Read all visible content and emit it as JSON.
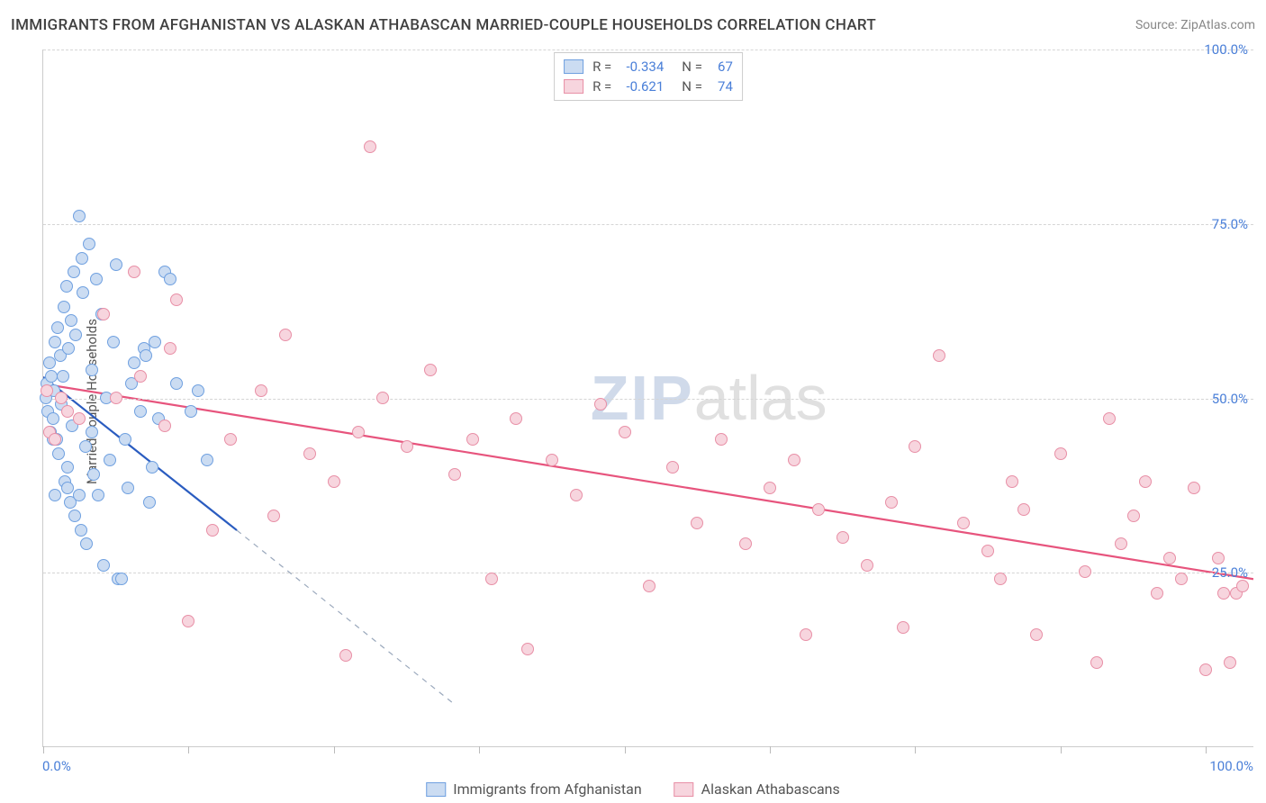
{
  "title": "IMMIGRANTS FROM AFGHANISTAN VS ALASKAN ATHABASCAN MARRIED-COUPLE HOUSEHOLDS CORRELATION CHART",
  "source": "Source: ZipAtlas.com",
  "ylabel": "Married-couple Households",
  "watermark": {
    "part1": "ZIP",
    "part2": "atlas"
  },
  "chart": {
    "type": "scatter",
    "xlim": [
      0,
      100
    ],
    "ylim": [
      0,
      100
    ],
    "xticks": [
      0,
      12,
      24,
      36,
      48,
      60,
      72,
      84,
      96
    ],
    "yticks": [
      25,
      50,
      75,
      100
    ],
    "ytick_labels": [
      "25.0%",
      "50.0%",
      "75.0%",
      "100.0%"
    ],
    "x_min_label": "0.0%",
    "x_max_label": "100.0%",
    "grid_color": "#d5d5d5",
    "axis_color": "#cccccc",
    "tick_label_color": "#4a7fd8",
    "background_color": "#ffffff",
    "marker_radius": 7,
    "marker_border_width": 1.5,
    "trend_line_width": 2.2
  },
  "series": [
    {
      "id": "afghanistan",
      "label": "Immigrants from Afghanistan",
      "fill": "#cbdcf2",
      "stroke": "#6fa0e0",
      "trend_color": "#2a5cc0",
      "R": "-0.334",
      "N": "67",
      "trend": {
        "x1": 0,
        "y1": 53,
        "x2_solid": 16,
        "y2_solid": 31,
        "x2_dash": 34,
        "y2_dash": 6
      },
      "points": [
        [
          0.2,
          50
        ],
        [
          0.3,
          52
        ],
        [
          0.4,
          48
        ],
        [
          0.5,
          55
        ],
        [
          0.6,
          45
        ],
        [
          0.7,
          53
        ],
        [
          0.8,
          47
        ],
        [
          0.9,
          51
        ],
        [
          1.0,
          58
        ],
        [
          1.1,
          44
        ],
        [
          1.2,
          60
        ],
        [
          1.3,
          42
        ],
        [
          1.4,
          56
        ],
        [
          1.5,
          49
        ],
        [
          1.6,
          53
        ],
        [
          1.7,
          63
        ],
        [
          1.8,
          38
        ],
        [
          1.9,
          66
        ],
        [
          2.0,
          40
        ],
        [
          2.1,
          57
        ],
        [
          2.2,
          35
        ],
        [
          2.3,
          61
        ],
        [
          2.4,
          46
        ],
        [
          2.5,
          68
        ],
        [
          2.6,
          33
        ],
        [
          2.7,
          59
        ],
        [
          3.0,
          76
        ],
        [
          3.1,
          31
        ],
        [
          3.2,
          70
        ],
        [
          3.3,
          65
        ],
        [
          3.5,
          43
        ],
        [
          3.6,
          29
        ],
        [
          3.8,
          72
        ],
        [
          4.0,
          54
        ],
        [
          4.2,
          39
        ],
        [
          4.4,
          67
        ],
        [
          4.5,
          36
        ],
        [
          4.8,
          62
        ],
        [
          5.0,
          26
        ],
        [
          5.2,
          50
        ],
        [
          5.5,
          41
        ],
        [
          5.8,
          58
        ],
        [
          6.0,
          69
        ],
        [
          6.2,
          24
        ],
        [
          6.5,
          24
        ],
        [
          6.8,
          44
        ],
        [
          7.0,
          37
        ],
        [
          7.3,
          52
        ],
        [
          7.5,
          55
        ],
        [
          8.0,
          48
        ],
        [
          8.3,
          57
        ],
        [
          8.5,
          56
        ],
        [
          8.8,
          35
        ],
        [
          9.0,
          40
        ],
        [
          9.2,
          58
        ],
        [
          9.5,
          47
        ],
        [
          10.0,
          68
        ],
        [
          10.5,
          67
        ],
        [
          11.0,
          52
        ],
        [
          12.2,
          48
        ],
        [
          12.8,
          51
        ],
        [
          13.5,
          41
        ],
        [
          1.0,
          36
        ],
        [
          2.0,
          37
        ],
        [
          3.0,
          36
        ],
        [
          4.0,
          45
        ],
        [
          0.8,
          44
        ]
      ]
    },
    {
      "id": "athabascan",
      "label": "Alaskan Athabascans",
      "fill": "#f7d5de",
      "stroke": "#e88fa6",
      "trend_color": "#e7547d",
      "R": "-0.621",
      "N": "74",
      "trend": {
        "x1": 0,
        "y1": 52,
        "x2_solid": 100,
        "y2_solid": 24,
        "x2_dash": 100,
        "y2_dash": 24
      },
      "points": [
        [
          0.5,
          45
        ],
        [
          1.0,
          44
        ],
        [
          2.0,
          48
        ],
        [
          5.0,
          62
        ],
        [
          7.5,
          68
        ],
        [
          8.0,
          53
        ],
        [
          10.0,
          46
        ],
        [
          10.5,
          57
        ],
        [
          11.0,
          64
        ],
        [
          14.0,
          31
        ],
        [
          15.5,
          44
        ],
        [
          18.0,
          51
        ],
        [
          20.0,
          59
        ],
        [
          22.0,
          42
        ],
        [
          24.0,
          38
        ],
        [
          26.0,
          45
        ],
        [
          27.0,
          86
        ],
        [
          28.0,
          50
        ],
        [
          30.0,
          43
        ],
        [
          32.0,
          54
        ],
        [
          34.0,
          39
        ],
        [
          35.5,
          44
        ],
        [
          37.0,
          24
        ],
        [
          39.0,
          47
        ],
        [
          40.0,
          14
        ],
        [
          42.0,
          41
        ],
        [
          44.0,
          36
        ],
        [
          46.0,
          49
        ],
        [
          48.0,
          45
        ],
        [
          50.0,
          23
        ],
        [
          52.0,
          40
        ],
        [
          54.0,
          32
        ],
        [
          56.0,
          44
        ],
        [
          58.0,
          29
        ],
        [
          60.0,
          37
        ],
        [
          62.0,
          41
        ],
        [
          63.0,
          16
        ],
        [
          64.0,
          34
        ],
        [
          66.0,
          30
        ],
        [
          68.0,
          26
        ],
        [
          70.0,
          35
        ],
        [
          71.0,
          17
        ],
        [
          72.0,
          43
        ],
        [
          74.0,
          56
        ],
        [
          76.0,
          32
        ],
        [
          78.0,
          28
        ],
        [
          79.0,
          24
        ],
        [
          80.0,
          38
        ],
        [
          81.0,
          34
        ],
        [
          82.0,
          16
        ],
        [
          84.0,
          42
        ],
        [
          86.0,
          25
        ],
        [
          87.0,
          12
        ],
        [
          88.0,
          47
        ],
        [
          89.0,
          29
        ],
        [
          90.0,
          33
        ],
        [
          91.0,
          38
        ],
        [
          92.0,
          22
        ],
        [
          93.0,
          27
        ],
        [
          94.0,
          24
        ],
        [
          95.0,
          37
        ],
        [
          96.0,
          11
        ],
        [
          97.0,
          27
        ],
        [
          97.5,
          22
        ],
        [
          98.0,
          12
        ],
        [
          98.5,
          22
        ],
        [
          99.0,
          23
        ],
        [
          0.3,
          51
        ],
        [
          1.5,
          50
        ],
        [
          3.0,
          47
        ],
        [
          6.0,
          50
        ],
        [
          12.0,
          18
        ],
        [
          19.0,
          33
        ],
        [
          25.0,
          13
        ]
      ]
    }
  ],
  "stats_legend": {
    "r_label": "R =",
    "n_label": "N ="
  }
}
